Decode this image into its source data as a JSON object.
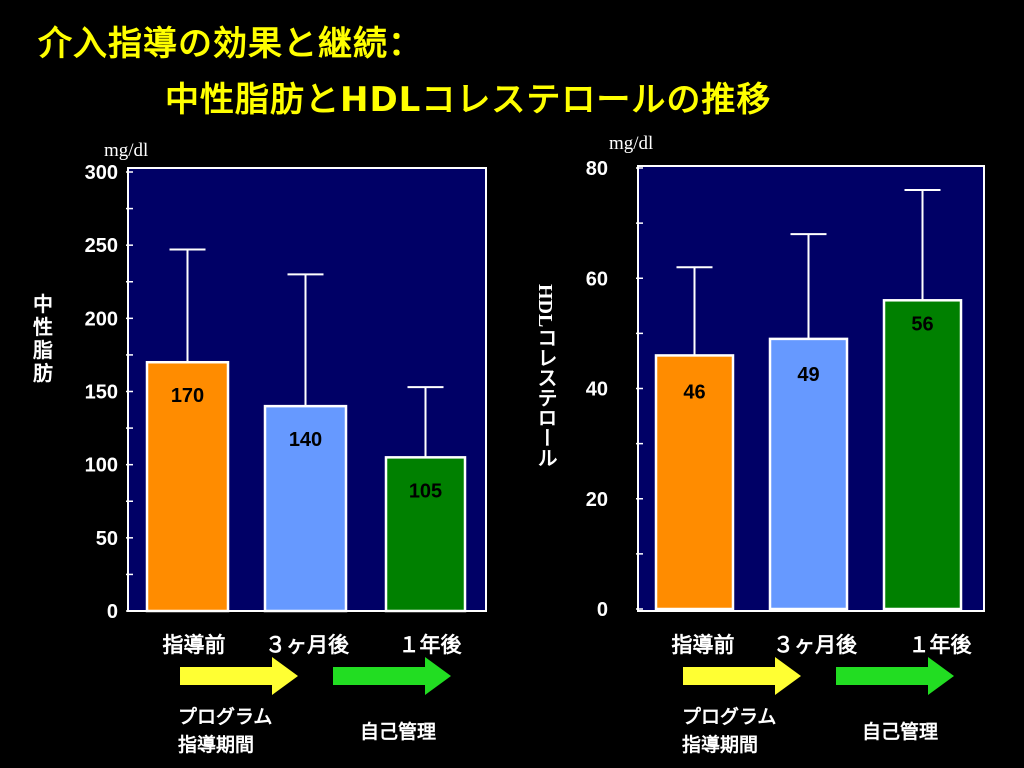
{
  "title": {
    "line1": "介入指導の効果と継続：",
    "line2": "中性脂肪とHDLコレステロールの推移"
  },
  "colors": {
    "background": "#000000",
    "plot_bg": "#000066",
    "title": "#ffff00",
    "bar_before": "#ff8c00",
    "bar_3m": "#6699ff",
    "bar_1y": "#008000",
    "arrow_program": "#ffff33",
    "arrow_self": "#22dd22"
  },
  "chart_data": [
    {
      "type": "bar",
      "title": "中性脂肪",
      "ylabel": "中性脂肪",
      "unit": "mg/dl",
      "categories": [
        "指導前",
        "３ヶ月後",
        "１年後"
      ],
      "values": [
        170,
        140,
        105
      ],
      "value_labels": [
        "170",
        "140",
        "105"
      ],
      "error_upper": [
        247,
        230,
        153
      ],
      "ylim": [
        0,
        300
      ],
      "ticks": [
        0,
        50,
        100,
        150,
        200,
        250,
        300
      ],
      "tick_labels": [
        "0",
        "50",
        "100",
        "150",
        "200",
        "250",
        "300"
      ],
      "bar_colors": [
        "#ff8c00",
        "#6699ff",
        "#008000"
      ]
    },
    {
      "type": "bar",
      "title": "HDLコレステロール",
      "ylabel": "HDLコレステロール",
      "unit": "mg/dl",
      "categories": [
        "指導前",
        "３ヶ月後",
        "１年後"
      ],
      "values": [
        46,
        49,
        56
      ],
      "value_labels": [
        "46",
        "49",
        "56"
      ],
      "error_upper": [
        62,
        68,
        76
      ],
      "ylim": [
        0,
        80
      ],
      "ticks": [
        0,
        20,
        40,
        60,
        80
      ],
      "tick_labels": [
        "0",
        "20",
        "40",
        "60",
        "80"
      ],
      "bar_colors": [
        "#ff8c00",
        "#6699ff",
        "#008000"
      ]
    }
  ],
  "left_panel": {
    "unit": "mg/dl",
    "ylabel_chars": [
      "中",
      "性",
      "脂",
      "肪"
    ],
    "categories": [
      "指導前",
      "３ヶ月後",
      "１年後"
    ],
    "program_line1": "プログラム",
    "program_line2": "指導期間",
    "self_label": "自己管理"
  },
  "right_panel": {
    "unit": "mg/dl",
    "ylabel": "HDLコレステロール",
    "categories": [
      "指導前",
      "３ヶ月後",
      "１年後"
    ],
    "program_line1": "プログラム",
    "program_line2": "指導期間",
    "self_label": "自己管理"
  }
}
